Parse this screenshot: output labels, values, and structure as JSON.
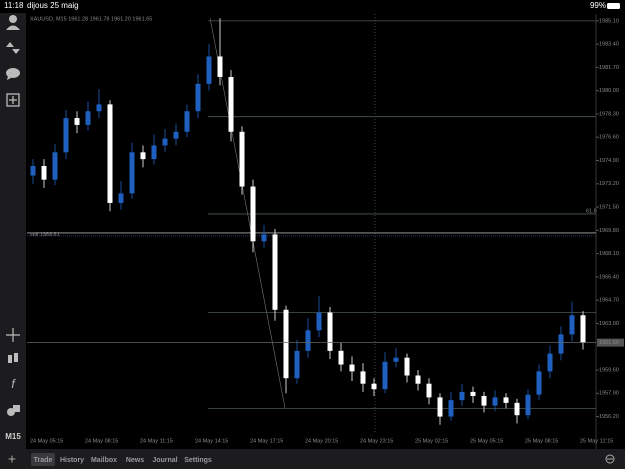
{
  "status_bar": {
    "time": "11:18",
    "date": "dijous 25 maig",
    "battery": "99%"
  },
  "toolbar": {
    "timeframe": "M15"
  },
  "tabs": [
    "Trade",
    "History",
    "Mailbox",
    "News",
    "Journal",
    "Settings"
  ],
  "chart_data": {
    "type": "candlestick",
    "title": "XAUUSD, M15  1961.28 1961.78 1961.20 1961.65",
    "categories": [
      "24 May 05:15",
      null,
      null,
      null,
      null,
      "24 May 08:15",
      null,
      null,
      null,
      null,
      "24 May 11:15",
      null,
      null,
      null,
      null,
      "24 May 14:15",
      null,
      null,
      null,
      null,
      "24 May 17:15",
      null,
      null,
      null,
      null,
      "24 May 20:15",
      null,
      null,
      null,
      null,
      "24 May 23:15",
      null,
      null,
      null,
      null,
      "25 May 02:15",
      null,
      null,
      null,
      null,
      "25 May 05:15",
      null,
      null,
      null,
      null,
      "25 May 08:15",
      null,
      null,
      null,
      null,
      "25 May 12:15"
    ],
    "open": [
      1973.8,
      1974.5,
      1973.5,
      1975.5,
      1978,
      1977.5,
      1978.5,
      1979,
      1971.8,
      1972.5,
      1975.5,
      1975,
      1976,
      1976.5,
      1977,
      1978.5,
      1980.5,
      1982.5,
      1981,
      1977,
      1973,
      1969,
      1969.5,
      1964,
      1959,
      1961,
      1962.5,
      1963.8,
      1961,
      1960,
      1959.5,
      1958.6,
      1958.2,
      1960.2,
      1960.5,
      1959.2,
      1958.6,
      1957.6,
      1956.2,
      1957.4,
      1958,
      1957.7,
      1957,
      1957.6,
      1957.2,
      1956.3,
      1957.8,
      1959.5,
      1960.8,
      1962.2,
      1963.6
    ],
    "high": [
      1975.0,
      1975.0,
      1976.1,
      1978.6,
      1978.5,
      1979.2,
      1980.1,
      1979.3,
      1973.4,
      1976.2,
      1976.0,
      1976.8,
      1977.2,
      1977.6,
      1979.0,
      1981.2,
      1983.4,
      1985.3,
      1981.5,
      1977.4,
      1973.5,
      1970.2,
      1969.9,
      1964.3,
      1961.8,
      1963.4,
      1965.0,
      1964.2,
      1961.6,
      1960.6,
      1960.1,
      1959.0,
      1960.9,
      1961.2,
      1960.8,
      1959.6,
      1959.0,
      1957.9,
      1958.0,
      1958.6,
      1958.4,
      1958.0,
      1958.1,
      1957.9,
      1957.5,
      1958.2,
      1960.0,
      1961.4,
      1962.8,
      1964.6,
      1963.9
    ],
    "low": [
      1973.2,
      1972.9,
      1973.1,
      1975.0,
      1976.9,
      1977.1,
      1978.0,
      1971.2,
      1971.3,
      1972.1,
      1974.4,
      1974.6,
      1975.5,
      1976.0,
      1976.6,
      1978.0,
      1980.0,
      1980.4,
      1976.3,
      1972.4,
      1968.2,
      1968.5,
      1963.2,
      1957.9,
      1958.6,
      1960.5,
      1962.0,
      1960.4,
      1959.5,
      1958.8,
      1958.0,
      1957.7,
      1957.9,
      1959.8,
      1958.7,
      1958.1,
      1957.1,
      1955.6,
      1955.9,
      1957.0,
      1957.2,
      1956.5,
      1956.6,
      1956.8,
      1955.7,
      1956.0,
      1957.4,
      1959.0,
      1960.3,
      1961.7,
      1961.1
    ],
    "close": [
      1974.5,
      1973.5,
      1975.5,
      1978,
      1977.5,
      1978.5,
      1979,
      1971.8,
      1972.5,
      1975.5,
      1975,
      1976,
      1976.5,
      1977,
      1978.5,
      1980.5,
      1982.5,
      1981,
      1977,
      1973,
      1969,
      1969.5,
      1964,
      1959,
      1961,
      1962.5,
      1963.8,
      1961,
      1960,
      1959.5,
      1958.6,
      1958.2,
      1960.2,
      1960.5,
      1959.2,
      1958.6,
      1957.6,
      1956.2,
      1957.4,
      1958,
      1957.7,
      1957,
      1957.6,
      1957.2,
      1956.3,
      1957.8,
      1959.5,
      1960.8,
      1962.2,
      1963.6,
      1961.6
    ],
    "bull_color": "#1f5fbf",
    "bear_color": "#ffffff",
    "ylim": [
      1955.0,
      1985.6
    ],
    "yticks": [
      {
        "value": 1985.1,
        "label": "1985.10"
      },
      {
        "value": 1983.4,
        "label": "1983.40"
      },
      {
        "value": 1981.7,
        "label": "1981.70"
      },
      {
        "value": 1980.0,
        "label": "1980.00"
      },
      {
        "value": 1978.3,
        "label": "1978.30"
      },
      {
        "value": 1976.6,
        "label": "1976.60"
      },
      {
        "value": 1974.9,
        "label": "1974.90"
      },
      {
        "value": 1973.2,
        "label": "1973.20"
      },
      {
        "value": 1971.5,
        "label": "1971.50"
      },
      {
        "value": 1969.8,
        "label": "1969.80"
      },
      {
        "value": 1968.1,
        "label": "1968.10"
      },
      {
        "value": 1966.4,
        "label": "1966.40"
      },
      {
        "value": 1964.7,
        "label": "1964.70"
      },
      {
        "value": 1963.0,
        "label": "1963.00"
      },
      {
        "value": 1959.6,
        "label": "1959.60"
      },
      {
        "value": 1957.9,
        "label": "1957.90"
      },
      {
        "value": 1956.2,
        "label": "1956.20"
      }
    ],
    "bid": {
      "value": 1961.6,
      "label": "1961.60"
    },
    "sell_line": {
      "value": 1969.61,
      "label": "sell 1969.61"
    },
    "fibo_levels": [
      1985.1,
      1978.1,
      1971.0,
      1963.8,
      1956.8
    ],
    "fibo_label": "61.8"
  }
}
